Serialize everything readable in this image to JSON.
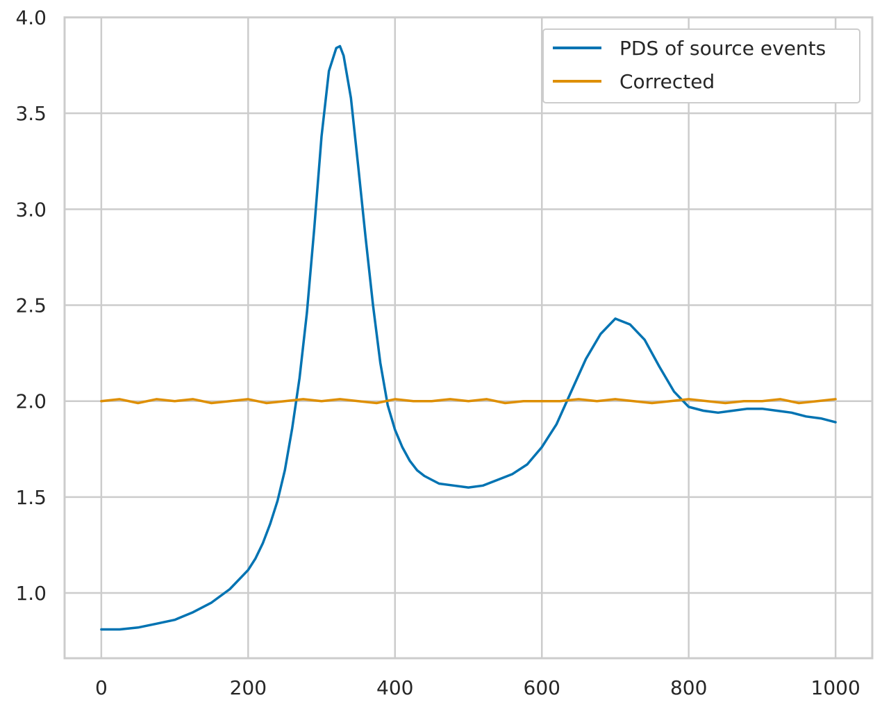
{
  "chart_data": {
    "type": "line",
    "title": "",
    "xlabel": "",
    "ylabel": "",
    "xlim": [
      -50,
      1050
    ],
    "ylim": [
      0.66,
      4.0
    ],
    "grid": true,
    "legend_position": "top-right",
    "x_ticks": [
      0,
      200,
      400,
      600,
      800,
      1000
    ],
    "x_tick_labels": [
      "0",
      "200",
      "400",
      "600",
      "800",
      "1000"
    ],
    "y_ticks": [
      1.0,
      1.5,
      2.0,
      2.5,
      3.0,
      3.5,
      4.0
    ],
    "y_tick_labels": [
      "1.0",
      "1.5",
      "2.0",
      "2.5",
      "3.0",
      "3.5",
      "4.0"
    ],
    "series": [
      {
        "name": "PDS of source events",
        "color": "#0173b2",
        "x": [
          0,
          25,
          50,
          75,
          100,
          125,
          150,
          175,
          200,
          210,
          220,
          230,
          240,
          250,
          260,
          270,
          280,
          290,
          300,
          310,
          320,
          325,
          330,
          340,
          350,
          360,
          370,
          380,
          390,
          400,
          410,
          420,
          430,
          440,
          450,
          460,
          480,
          500,
          520,
          540,
          560,
          580,
          600,
          620,
          640,
          660,
          680,
          700,
          720,
          740,
          760,
          780,
          800,
          820,
          840,
          860,
          880,
          900,
          920,
          940,
          960,
          980,
          1000
        ],
        "y": [
          0.81,
          0.81,
          0.82,
          0.84,
          0.86,
          0.9,
          0.95,
          1.02,
          1.12,
          1.18,
          1.26,
          1.36,
          1.48,
          1.64,
          1.86,
          2.12,
          2.46,
          2.9,
          3.38,
          3.72,
          3.84,
          3.85,
          3.8,
          3.58,
          3.22,
          2.85,
          2.5,
          2.2,
          1.98,
          1.85,
          1.76,
          1.69,
          1.64,
          1.61,
          1.59,
          1.57,
          1.56,
          1.55,
          1.56,
          1.59,
          1.62,
          1.67,
          1.76,
          1.88,
          2.05,
          2.22,
          2.35,
          2.43,
          2.4,
          2.32,
          2.18,
          2.05,
          1.97,
          1.95,
          1.94,
          1.95,
          1.96,
          1.96,
          1.95,
          1.94,
          1.92,
          1.91,
          1.89
        ]
      },
      {
        "name": "Corrected",
        "color": "#de8f05",
        "x": [
          0,
          25,
          50,
          75,
          100,
          125,
          150,
          175,
          200,
          225,
          250,
          275,
          300,
          325,
          350,
          375,
          400,
          425,
          450,
          475,
          500,
          525,
          550,
          575,
          600,
          625,
          650,
          675,
          700,
          725,
          750,
          775,
          800,
          825,
          850,
          875,
          900,
          925,
          950,
          975,
          1000
        ],
        "y": [
          2.0,
          2.01,
          1.99,
          2.01,
          2.0,
          2.01,
          1.99,
          2.0,
          2.01,
          1.99,
          2.0,
          2.01,
          2.0,
          2.01,
          2.0,
          1.99,
          2.01,
          2.0,
          2.0,
          2.01,
          2.0,
          2.01,
          1.99,
          2.0,
          2.0,
          2.0,
          2.01,
          2.0,
          2.01,
          2.0,
          1.99,
          2.0,
          2.01,
          2.0,
          1.99,
          2.0,
          2.0,
          2.01,
          1.99,
          2.0,
          2.01
        ]
      }
    ]
  }
}
